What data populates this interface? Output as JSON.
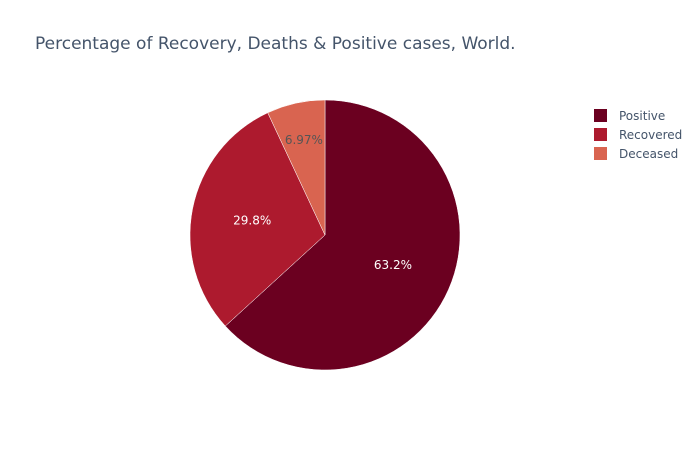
{
  "chart_data": {
    "type": "pie",
    "title": "Percentage of Recovery, Deaths & Positive cases, World.",
    "slices": [
      {
        "name": "Positive",
        "percent": 63.2,
        "label": "63.2%",
        "color": "#6b0020",
        "label_color": "#ffffff"
      },
      {
        "name": "Recovered",
        "percent": 29.8,
        "label": "29.8%",
        "color": "#ad1a2e",
        "label_color": "#ffffff"
      },
      {
        "name": "Deceased",
        "percent": 6.97,
        "label": "6.97%",
        "color": "#d96450",
        "label_color": "#555555"
      }
    ],
    "legend_placement": "top-right"
  }
}
